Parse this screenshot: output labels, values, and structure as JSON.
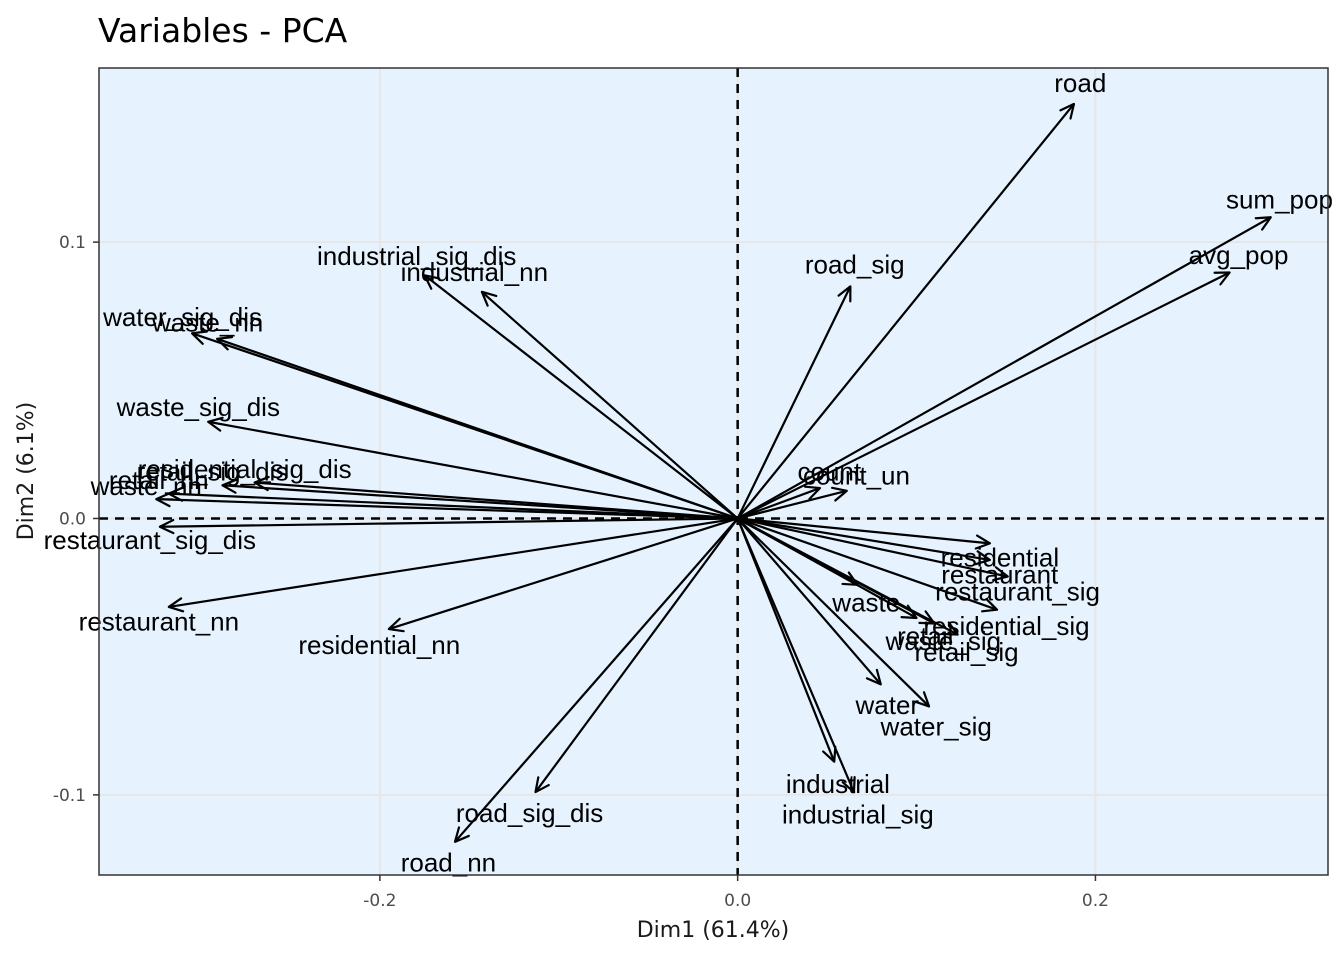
{
  "chart_data": {
    "type": "scatter",
    "title": "Variables - PCA",
    "xlabel": "Dim1 (61.4%)",
    "ylabel": "Dim2 (6.1%)",
    "xlim": [
      -0.357,
      0.33
    ],
    "ylim": [
      -0.129,
      0.163
    ],
    "xticks": [
      -0.2,
      0.0,
      0.2
    ],
    "yticks": [
      -0.1,
      0.0,
      0.1
    ],
    "xtick_labels": [
      "-0.2",
      "0.0",
      "0.2"
    ],
    "ytick_labels": [
      "-0.1",
      "0.0",
      "0.1"
    ],
    "grid": true,
    "zero_lines": true,
    "colors": {
      "panel": "#e6f3ff",
      "arrow": "#000000",
      "grid": "#e6e6e6"
    },
    "variables": [
      {
        "name": "road",
        "x": 0.188,
        "y": 0.15
      },
      {
        "name": "sum_pop",
        "x": 0.298,
        "y": 0.109
      },
      {
        "name": "avg_pop",
        "x": 0.275,
        "y": 0.089
      },
      {
        "name": "road_sig",
        "x": 0.063,
        "y": 0.084
      },
      {
        "name": "count",
        "x": 0.046,
        "y": 0.011
      },
      {
        "name": "count_un",
        "x": 0.061,
        "y": 0.01
      },
      {
        "name": "residential",
        "x": 0.141,
        "y": -0.009
      },
      {
        "name": "restaurant",
        "x": 0.141,
        "y": -0.015
      },
      {
        "name": "restaurant_sig",
        "x": 0.151,
        "y": -0.021
      },
      {
        "name": "waste",
        "x": 0.067,
        "y": -0.024
      },
      {
        "name": "residential_sig",
        "x": 0.145,
        "y": -0.033
      },
      {
        "name": "retail",
        "x": 0.1,
        "y": -0.036
      },
      {
        "name": "waste_sig",
        "x": 0.11,
        "y": -0.038
      },
      {
        "name": "retail_sig",
        "x": 0.123,
        "y": -0.042
      },
      {
        "name": "water",
        "x": 0.08,
        "y": -0.06
      },
      {
        "name": "water_sig",
        "x": 0.107,
        "y": -0.068
      },
      {
        "name": "industrial",
        "x": 0.054,
        "y": -0.088
      },
      {
        "name": "industrial_sig",
        "x": 0.065,
        "y": -0.099
      },
      {
        "name": "industrial_sig_dis",
        "x": -0.175,
        "y": 0.088
      },
      {
        "name": "industrial_nn",
        "x": -0.143,
        "y": 0.082
      },
      {
        "name": "water_sig_dis",
        "x": -0.305,
        "y": 0.067
      },
      {
        "name": "waste_nn",
        "x": -0.291,
        "y": 0.065
      },
      {
        "name": "waste_sig_dis",
        "x": -0.296,
        "y": 0.035
      },
      {
        "name": "residential_sig_dis",
        "x": -0.27,
        "y": 0.013
      },
      {
        "name": "retail_sig_dis",
        "x": -0.288,
        "y": 0.012
      },
      {
        "name": "retail_nn",
        "x": -0.318,
        "y": 0.009
      },
      {
        "name": "waste_nn",
        "x": -0.325,
        "y": 0.007
      },
      {
        "name": "restaurant_sig_dis",
        "x": -0.323,
        "y": -0.003
      },
      {
        "name": "restaurant_nn",
        "x": -0.318,
        "y": -0.032
      },
      {
        "name": "residential_nn",
        "x": -0.195,
        "y": -0.04
      },
      {
        "name": "road_sig_dis",
        "x": -0.113,
        "y": -0.099
      },
      {
        "name": "road_nn",
        "x": -0.158,
        "y": -0.117
      }
    ]
  }
}
